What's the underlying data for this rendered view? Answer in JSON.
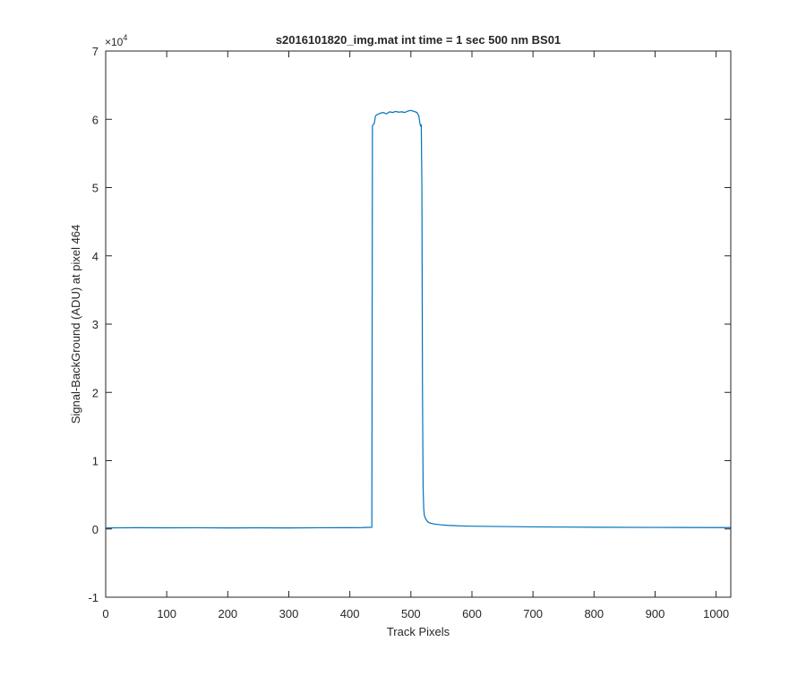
{
  "chart_data": {
    "type": "line",
    "title": "s2016101820_img.mat int time = 1 sec  500 nm BS01",
    "xlabel": "Track Pixels",
    "ylabel": "Signal-BackGround (ADU) at pixel 464",
    "y_exponent_label": "×10",
    "y_exponent_power": "4",
    "xlim": [
      0,
      1024
    ],
    "ylim": [
      -10000,
      70000
    ],
    "x_ticks": [
      "0",
      "100",
      "200",
      "300",
      "400",
      "500",
      "600",
      "700",
      "800",
      "900",
      "1000"
    ],
    "y_ticks": [
      "-1",
      "0",
      "1",
      "2",
      "3",
      "4",
      "5",
      "6",
      "7"
    ],
    "grid": false,
    "box": true,
    "series": [
      {
        "color": "#0072BD",
        "x": [
          1,
          50,
          100,
          150,
          200,
          250,
          300,
          350,
          400,
          420,
          436,
          437,
          438,
          440,
          442,
          445,
          450,
          455,
          460,
          465,
          470,
          475,
          480,
          485,
          490,
          495,
          500,
          505,
          510,
          513,
          515,
          516,
          517,
          518,
          519,
          520,
          521,
          522,
          524,
          527,
          530,
          535,
          540,
          550,
          560,
          580,
          600,
          650,
          700,
          800,
          900,
          1000,
          1024
        ],
        "y": [
          150,
          180,
          160,
          170,
          150,
          160,
          150,
          170,
          180,
          200,
          250,
          59000,
          59200,
          59400,
          60500,
          60700,
          60900,
          61000,
          60800,
          61100,
          61000,
          61150,
          61050,
          61100,
          61000,
          61200,
          61300,
          61150,
          61000,
          60500,
          59300,
          59000,
          59200,
          50000,
          20000,
          6000,
          3000,
          2000,
          1500,
          1100,
          900,
          800,
          700,
          600,
          520,
          450,
          400,
          350,
          300,
          250,
          220,
          200,
          200
        ]
      }
    ]
  }
}
